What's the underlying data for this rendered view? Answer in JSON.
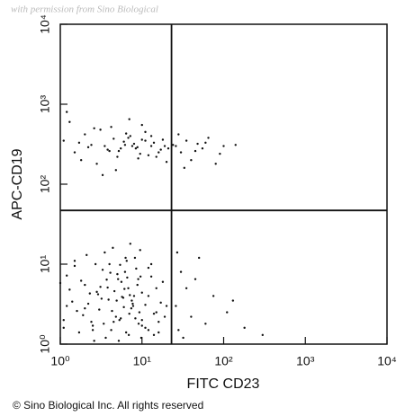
{
  "chart_data": {
    "type": "scatter",
    "watermark": "with permission from Sino Biological",
    "xlabel": "FITC CD23",
    "ylabel": "APC-CD19",
    "footer": "© Sino Biological Inc. All rights reserved",
    "xscale": "log",
    "yscale": "log",
    "xlim": [
      1,
      10000
    ],
    "ylim": [
      1,
      10000
    ],
    "xticks": [
      {
        "value": 1,
        "label": "10⁰"
      },
      {
        "value": 10,
        "label": "10¹"
      },
      {
        "value": 100,
        "label": "10²"
      },
      {
        "value": 1000,
        "label": "10³"
      },
      {
        "value": 10000,
        "label": "10⁴"
      }
    ],
    "yticks": [
      {
        "value": 1,
        "label": "10⁰"
      },
      {
        "value": 10,
        "label": "10¹"
      },
      {
        "value": 100,
        "label": "10²"
      },
      {
        "value": 1000,
        "label": "10³"
      },
      {
        "value": 10000,
        "label": "10⁴"
      }
    ],
    "gates": {
      "x": 23,
      "y": 47
    },
    "color": "#111111",
    "x": [
      1.2,
      2.5,
      3.1,
      4.8,
      6.2,
      7.5,
      9.1,
      12,
      15,
      18,
      1.5,
      2.0,
      3.6,
      5.1,
      5.9,
      8.2,
      10,
      13,
      16,
      2.8,
      1.1,
      1.8,
      2.2,
      4.0,
      4.5,
      6.8,
      7.0,
      9.5,
      11,
      14,
      1.3,
      2.6,
      3.3,
      3.9,
      5.5,
      6.5,
      8.8,
      10,
      12,
      17,
      1.6,
      2.1,
      2.9,
      4.2,
      5.0,
      6.0,
      7.2,
      8.0,
      9.8,
      19,
      1.0,
      1.4,
      2.4,
      3.5,
      4.6,
      5.3,
      6.6,
      7.8,
      11,
      13,
      1.7,
      2.3,
      3.0,
      3.8,
      4.4,
      5.7,
      6.9,
      8.5,
      9.3,
      15,
      1.2,
      1.9,
      2.7,
      3.4,
      4.9,
      5.6,
      6.3,
      7.4,
      10,
      16,
      1.1,
      2.0,
      3.2,
      4.1,
      5.2,
      6.1,
      7.7,
      9.0,
      12,
      20,
      1.5,
      2.5,
      3.7,
      4.3,
      5.4,
      6.4,
      7.1,
      8.3,
      9.6,
      14,
      1.1,
      1.5,
      2.0,
      2.8,
      3.5,
      4.2,
      5.5,
      6.8,
      8.0,
      9.5,
      11,
      13,
      15,
      18,
      21,
      1.3,
      1.8,
      2.4,
      3.1,
      4.0,
      4.8,
      6.0,
      7.2,
      8.8,
      10,
      12,
      14,
      17,
      20,
      24,
      1.2,
      2.2,
      3.3,
      4.5,
      5.2,
      6.4,
      7.6,
      9.0,
      11,
      16,
      1.7,
      2.6,
      3.8,
      5.0,
      6.2,
      7.0,
      8.4,
      10,
      13,
      19,
      26,
      30,
      35,
      40,
      48,
      55,
      65,
      80,
      100,
      140,
      28,
      33,
      45,
      60,
      90,
      26,
      30,
      28,
      35,
      40,
      50,
      60,
      75,
      110,
      180,
      27,
      32,
      45,
      300,
      130
    ],
    "y": [
      3.0,
      1.5,
      5.2,
      2.2,
      8.0,
      3.5,
      1.8,
      4.0,
      2.5,
      6.0,
      9.5,
      2.8,
      1.2,
      6.5,
      3.8,
      12,
      2.0,
      7.0,
      1.4,
      4.5,
      1.6,
      6.2,
      3.2,
      10,
      1.9,
      5.0,
      2.4,
      15,
      3.1,
      1.3,
      4.8,
      1.1,
      8.5,
      3.6,
      2.1,
      11,
      5.5,
      1.7,
      9.0,
      3.3,
      2.6,
      13,
      4.2,
      1.5,
      7.5,
      2.9,
      18,
      4.0,
      1.2,
      2.2,
      5.8,
      3.4,
      1.9,
      14,
      4.6,
      2.0,
      6.8,
      3.0,
      1.6,
      10,
      1.4,
      4.3,
      2.7,
      5.1,
      16,
      3.9,
      1.3,
      8.8,
      2.5,
      5.0,
      7.2,
      2.3,
      10,
      1.8,
      3.5,
      6.0,
      12,
      2.8,
      4.4,
      1.9,
      2.0,
      5.5,
      3.7,
      7.8,
      1.1,
      4.9,
      3.2,
      6.5,
      1.5,
      3.0,
      11,
      1.7,
      6.4,
      2.6,
      9.8,
      1.4,
      4.1,
      2.1,
      7.0,
      2.4,
      350,
      250,
      420,
      180,
      300,
      520,
      280,
      380,
      320,
      240,
      450,
      300,
      220,
      360,
      280,
      600,
      200,
      310,
      480,
      260,
      150,
      340,
      400,
      290,
      550,
      230,
      330,
      270,
      190,
      310,
      800,
      290,
      130,
      370,
      260,
      430,
      300,
      210,
      350,
      250,
      330,
      500,
      270,
      220,
      310,
      650,
      280,
      360,
      400,
      300,
      300,
      250,
      350,
      200,
      320,
      280,
      380,
      180,
      300,
      310,
      420,
      160,
      260,
      330,
      240,
      3.0,
      8.0,
      1.5,
      5.0,
      2.2,
      12,
      1.8,
      4.0,
      2.5,
      1.6,
      14,
      1.2,
      6.5,
      1.3,
      3.5
    ]
  }
}
